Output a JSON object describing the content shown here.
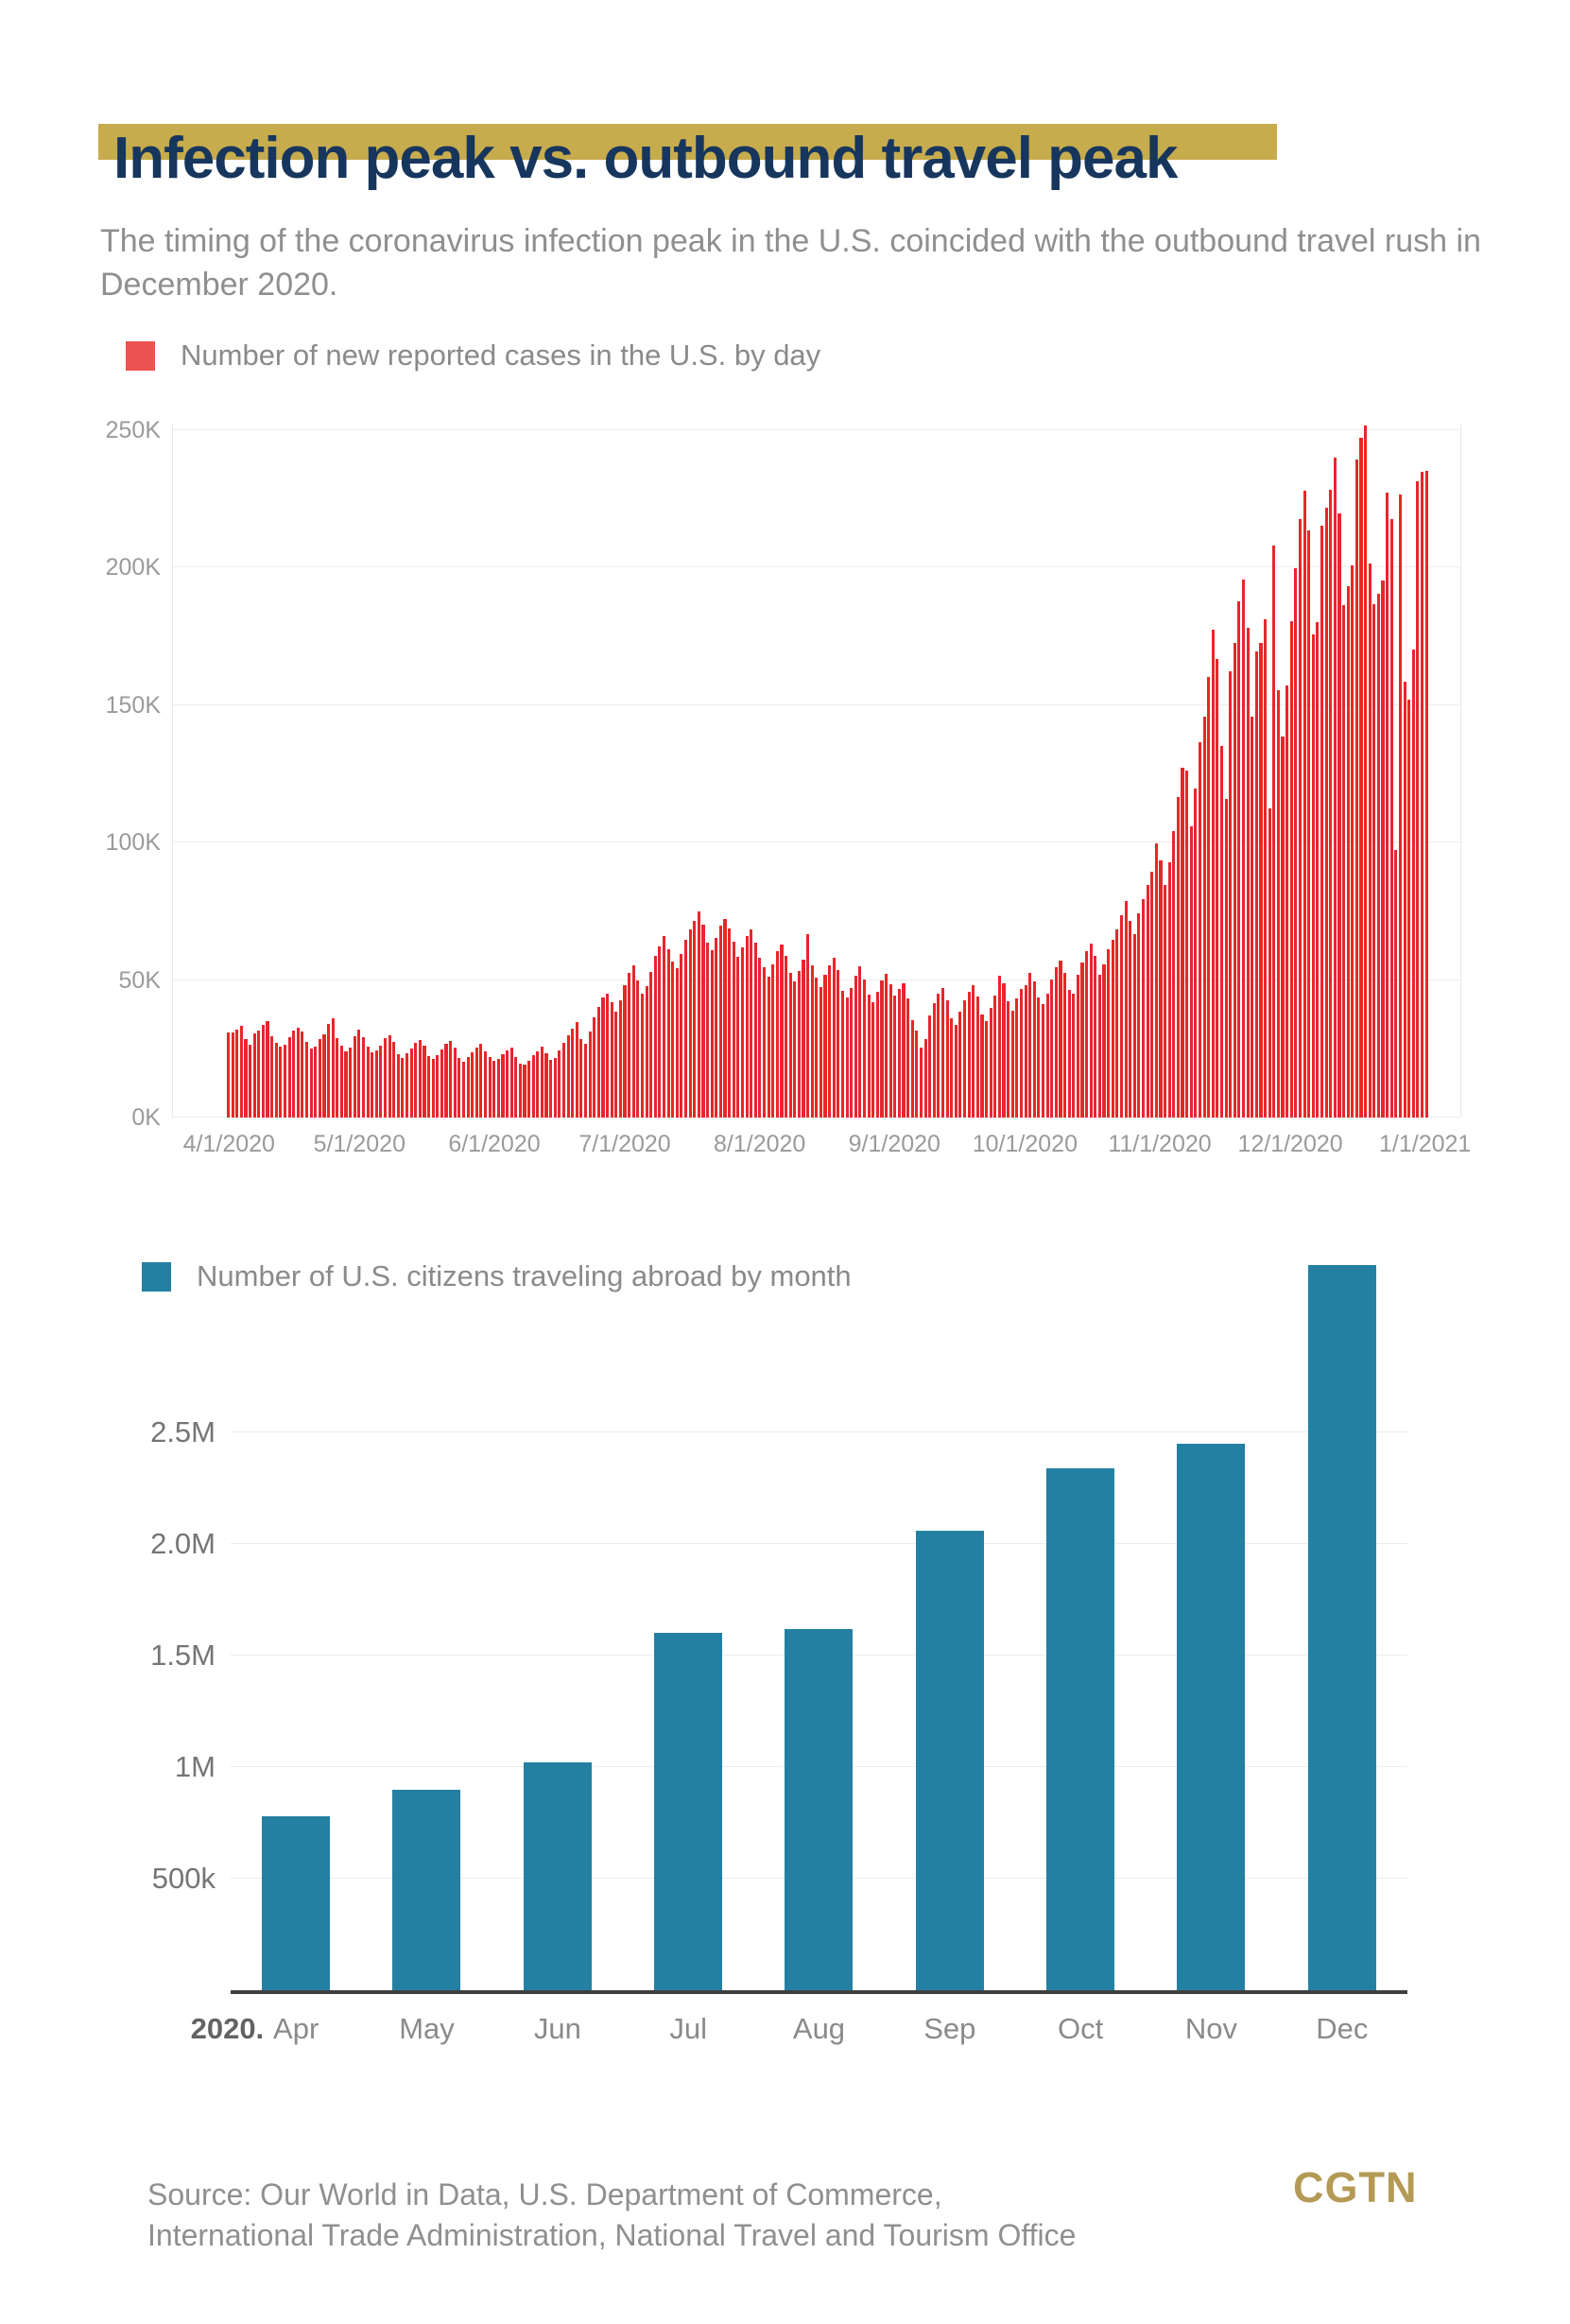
{
  "header": {
    "title": "Infection peak vs. outbound travel peak",
    "subtitle": "The timing of the coronavirus infection peak in the U.S. coincided with the outbound travel rush in December 2020."
  },
  "colors": {
    "title_navy": "#17365d",
    "gold_band": "#c7ac4d",
    "case_red": "#e8262b",
    "legend_red": "#ec5350",
    "travel_teal": "#2380a2",
    "text_gray": "#8f8f8f",
    "axis_gray": "#9a9a9a",
    "logo_gold": "#b49a55"
  },
  "chart_data": [
    {
      "type": "bar",
      "title": "Number of new reported cases in the U.S. by day",
      "unit": "new reported cases per day, thousands",
      "start_date": "4/1/2020",
      "end_date": "1/1/2021",
      "ylim": [
        0,
        260
      ],
      "grid": "horizontal",
      "legend_position": "top-left",
      "yticks": [
        {
          "label": "0K",
          "value": 0
        },
        {
          "label": "50K",
          "value": 50
        },
        {
          "label": "100K",
          "value": 100
        },
        {
          "label": "150K",
          "value": 150
        },
        {
          "label": "200K",
          "value": 200
        },
        {
          "label": "250K",
          "value": 250
        }
      ],
      "xticks": [
        {
          "label": "4/1/2020",
          "day": 0
        },
        {
          "label": "5/1/2020",
          "day": 30
        },
        {
          "label": "6/1/2020",
          "day": 61
        },
        {
          "label": "7/1/2020",
          "day": 91
        },
        {
          "label": "8/1/2020",
          "day": 122
        },
        {
          "label": "9/1/2020",
          "day": 153
        },
        {
          "label": "10/1/2020",
          "day": 183
        },
        {
          "label": "11/1/2020",
          "day": 214
        },
        {
          "label": "12/1/2020",
          "day": 244
        },
        {
          "label": "1/1/2021",
          "day": 275
        }
      ],
      "values_thousands": [
        30.8,
        31.0,
        32.1,
        33.3,
        28.7,
        26.5,
        30.6,
        31.7,
        33.8,
        35.1,
        29.5,
        27.2,
        25.8,
        26.4,
        29.3,
        31.5,
        32.6,
        31.2,
        27.5,
        25.0,
        25.9,
        28.4,
        30.2,
        33.9,
        36.2,
        28.8,
        26.1,
        24.2,
        25.4,
        29.6,
        31.9,
        29.3,
        25.7,
        23.8,
        24.5,
        26.3,
        28.9,
        30.1,
        27.4,
        22.9,
        21.8,
        23.4,
        25.2,
        27.1,
        28.3,
        26.0,
        22.5,
        21.2,
        22.6,
        24.8,
        26.7,
        27.9,
        25.3,
        21.7,
        20.4,
        21.9,
        23.7,
        25.6,
        26.8,
        24.1,
        22.0,
        20.8,
        21.5,
        22.9,
        24.3,
        25.6,
        22.1,
        19.7,
        19.2,
        20.6,
        22.8,
        24.0,
        25.8,
        23.3,
        20.9,
        21.6,
        24.5,
        27.3,
        29.8,
        32.4,
        34.7,
        28.6,
        27.0,
        31.2,
        36.5,
        40.1,
        43.6,
        45.2,
        41.8,
        38.4,
        42.7,
        48.3,
        52.6,
        55.4,
        49.8,
        45.2,
        47.9,
        53.1,
        58.7,
        62.4,
        65.9,
        61.2,
        56.8,
        54.3,
        59.6,
        64.8,
        68.5,
        71.6,
        74.9,
        70.2,
        63.5,
        60.8,
        65.3,
        69.7,
        72.4,
        68.9,
        64.1,
        58.6,
        61.9,
        66.2,
        68.4,
        63.7,
        58.2,
        54.7,
        51.3,
        55.8,
        60.4,
        63.1,
        58.9,
        52.6,
        49.4,
        53.2,
        57.6,
        66.7,
        55.3,
        50.8,
        47.5,
        51.9,
        55.4,
        58.1,
        53.7,
        46.2,
        43.8,
        47.3,
        51.6,
        54.9,
        50.2,
        44.6,
        42.1,
        45.7,
        49.8,
        52.3,
        48.6,
        44.3,
        46.8,
        48.9,
        43.2,
        35.6,
        31.8,
        25.4,
        28.7,
        37.2,
        41.5,
        44.9,
        47.3,
        42.6,
        36.1,
        33.8,
        38.4,
        42.7,
        45.6,
        48.2,
        43.9,
        37.5,
        35.2,
        39.8,
        44.3,
        51.6,
        48.7,
        42.4,
        38.9,
        43.5,
        46.8,
        48.2,
        52.7,
        49.6,
        43.8,
        41.2,
        44.9,
        50.3,
        54.6,
        57.2,
        52.8,
        46.4,
        45.1,
        51.8,
        56.3,
        60.7,
        63.4,
        58.9,
        52.1,
        55.7,
        61.2,
        64.8,
        68.3,
        73.6,
        78.9,
        71.4,
        66.8,
        74.2,
        79.5,
        84.7,
        89.3,
        99.8,
        93.4,
        84.6,
        92.8,
        104.2,
        116.5,
        127.3,
        126.1,
        105.8,
        119.6,
        136.4,
        145.8,
        160.2,
        177.5,
        166.9,
        135.2,
        115.8,
        162.4,
        172.6,
        187.9,
        195.6,
        178.3,
        145.7,
        169.4,
        172.8,
        181.2,
        112.4,
        207.9,
        155.3,
        138.6,
        157.1,
        180.4,
        199.7,
        217.6,
        227.9,
        213.5,
        175.8,
        180.2,
        215.4,
        221.8,
        228.3,
        240.1,
        219.6,
        186.4,
        193.2,
        200.8,
        239.5,
        247.2,
        251.8,
        201.4,
        186.9,
        190.6,
        195.3,
        227.4,
        217.8,
        97.2,
        226.5,
        158.4,
        151.9,
        170.3,
        231.6,
        234.8,
        235.2
      ]
    },
    {
      "type": "bar",
      "title": "Number of U.S. citizens traveling abroad by month",
      "unit": "travelers per month, millions",
      "year_prefix": "2020.",
      "categories": [
        "Apr",
        "May",
        "Jun",
        "Jul",
        "Aug",
        "Sep",
        "Oct",
        "Nov",
        "Dec"
      ],
      "values_millions": [
        0.78,
        0.9,
        1.02,
        1.6,
        1.62,
        2.06,
        2.34,
        2.45,
        3.25
      ],
      "ylim": [
        0,
        3.3
      ],
      "grid": "horizontal",
      "legend_position": "top-left",
      "yticks": [
        {
          "label": "500k",
          "value": 0.5
        },
        {
          "label": "1M",
          "value": 1.0
        },
        {
          "label": "1.5M",
          "value": 1.5
        },
        {
          "label": "2.0M",
          "value": 2.0
        },
        {
          "label": "2.5M",
          "value": 2.5
        }
      ]
    }
  ],
  "footer": {
    "source_line1": "Source: Our World in Data, U.S. Department of Commerce,",
    "source_line2": "International Trade Administration, National Travel and Tourism Office",
    "logo": "CGTN"
  }
}
